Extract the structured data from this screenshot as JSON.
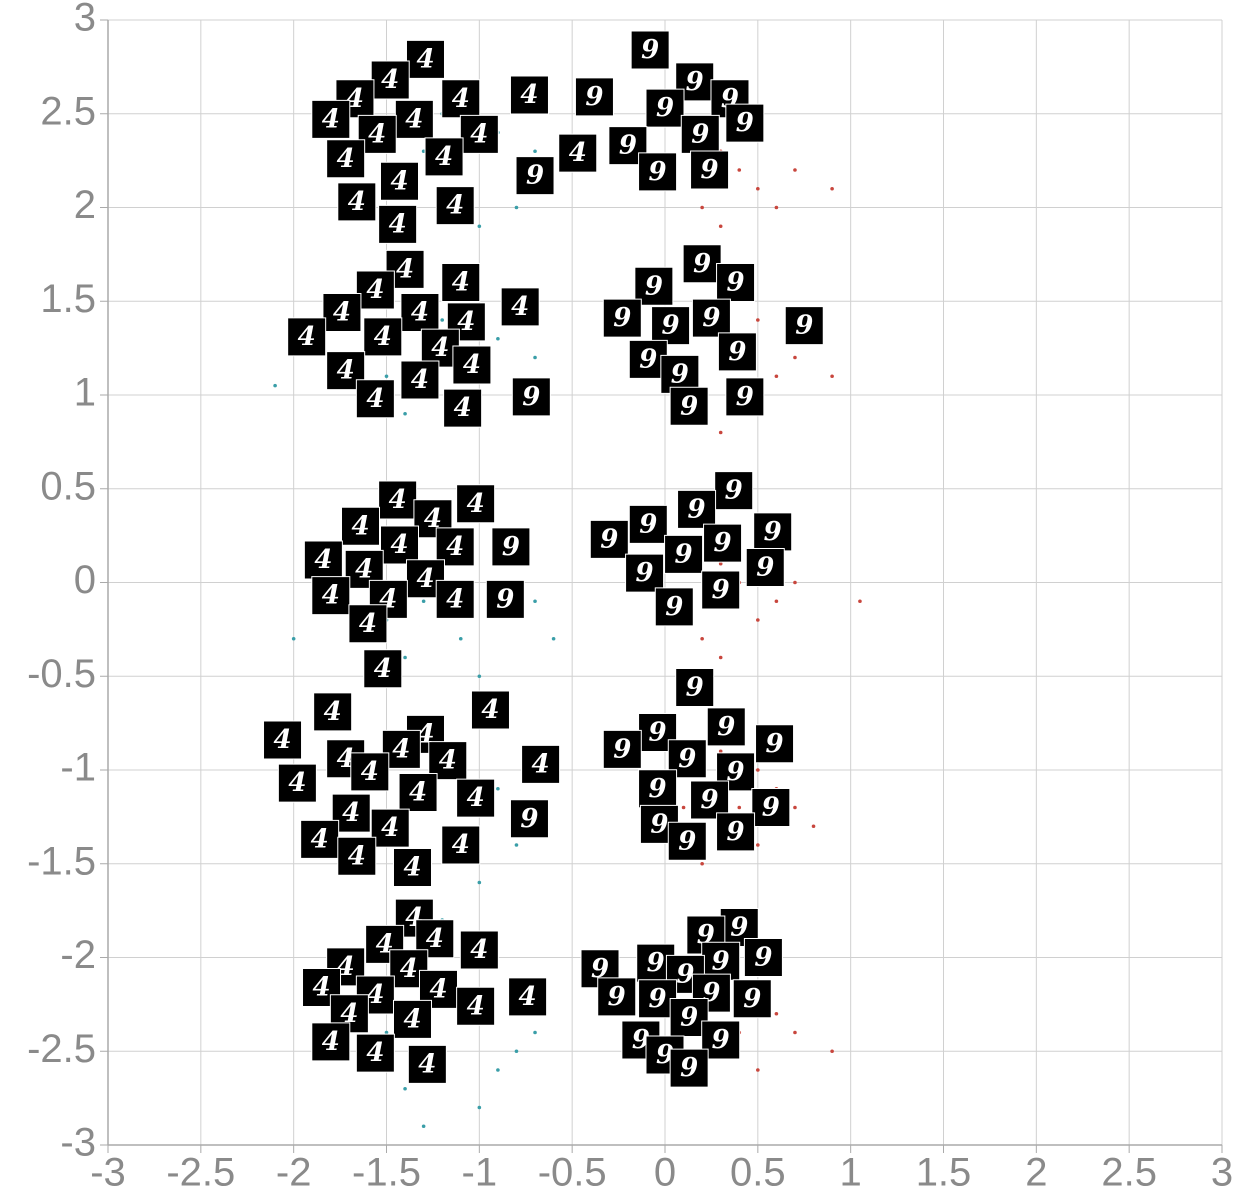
{
  "chart_data": {
    "type": "scatter",
    "xlim": [
      -3,
      3
    ],
    "ylim": [
      -3,
      3
    ],
    "xticks": [
      -3,
      -2.5,
      -2,
      -1.5,
      -1,
      -0.5,
      0,
      0.5,
      1,
      1.5,
      2,
      2.5,
      3
    ],
    "yticks": [
      -3,
      -2.5,
      -2,
      -1.5,
      -1,
      -0.5,
      0,
      0.5,
      1,
      1.5,
      2,
      2.5,
      3
    ],
    "grid": true,
    "series": [
      {
        "color": "#3a9ea8",
        "x": [
          -1.3,
          -1.1,
          -0.9,
          -1.5,
          -1.0,
          -0.7,
          -1.2,
          -1.4,
          -0.8,
          -1.6,
          -1.3,
          -1.1,
          -0.9,
          -1.5,
          -1.0,
          -0.7,
          -1.2,
          -1.4,
          -0.8,
          -2.1,
          -1.3,
          -1.1,
          -0.9,
          -1.5,
          -1.0,
          -0.7,
          -1.2,
          -1.4,
          -0.6,
          -2.0,
          -1.3,
          -1.1,
          -0.9,
          -1.5,
          -1.0,
          -0.7,
          -1.2,
          -1.4,
          -0.8,
          -1.2,
          -1.3,
          -1.1,
          -0.9,
          -1.5,
          -1.0,
          -0.7,
          -1.2,
          -1.4,
          -0.8,
          -1.3
        ],
        "y": [
          2.3,
          2.1,
          2.4,
          2.0,
          1.9,
          2.3,
          2.5,
          2.2,
          2.0,
          2.4,
          1.2,
          1.0,
          1.3,
          1.1,
          0.9,
          1.2,
          1.4,
          0.9,
          1.5,
          1.05,
          -0.1,
          -0.3,
          0.1,
          -0.2,
          -0.5,
          -0.1,
          0.2,
          -0.4,
          -0.3,
          -0.3,
          -1.2,
          -1.4,
          -1.1,
          -1.3,
          -1.6,
          -1.2,
          -1.0,
          -1.5,
          -1.4,
          -1.8,
          -2.5,
          -2.3,
          -2.6,
          -2.4,
          -2.8,
          -2.4,
          -2.2,
          -2.7,
          -2.5,
          -2.9
        ]
      },
      {
        "color": "#c8463d",
        "x": [
          0.4,
          0.5,
          0.3,
          0.6,
          0.2,
          0.5,
          0.7,
          0.3,
          0.9,
          0.1,
          0.4,
          0.5,
          0.3,
          0.6,
          0.2,
          0.5,
          0.7,
          0.3,
          0.9,
          0.1,
          0.4,
          0.5,
          0.3,
          0.6,
          0.2,
          0.5,
          0.7,
          0.3,
          1.05,
          0.1,
          0.4,
          0.5,
          0.3,
          0.6,
          0.2,
          0.5,
          0.7,
          0.3,
          0.8,
          0.1,
          0.4,
          0.5,
          0.3,
          0.6,
          0.2,
          0.5,
          0.7,
          0.3,
          0.9,
          0.1
        ],
        "y": [
          2.2,
          2.1,
          2.3,
          2.0,
          2.0,
          2.4,
          2.2,
          1.9,
          2.1,
          2.3,
          1.2,
          1.0,
          1.3,
          1.1,
          0.9,
          1.4,
          1.2,
          0.8,
          1.1,
          1.3,
          0.0,
          -0.2,
          0.1,
          -0.1,
          -0.3,
          0.2,
          0.0,
          -0.4,
          -0.1,
          0.1,
          -1.2,
          -1.0,
          -1.3,
          -1.1,
          -1.5,
          -1.4,
          -1.2,
          -0.9,
          -1.3,
          -1.2,
          -2.4,
          -2.2,
          -2.5,
          -2.3,
          -2.6,
          -2.6,
          -2.4,
          -2.1,
          -2.5,
          -2.4
        ]
      }
    ],
    "thumbnails": [
      {
        "x": -1.29,
        "y": 2.79,
        "label": "4"
      },
      {
        "x": -1.48,
        "y": 2.68,
        "label": "4"
      },
      {
        "x": -1.1,
        "y": 2.58,
        "label": "4"
      },
      {
        "x": -0.73,
        "y": 2.6,
        "label": "4"
      },
      {
        "x": -1.67,
        "y": 2.58,
        "label": "4"
      },
      {
        "x": -1.8,
        "y": 2.47,
        "label": "4"
      },
      {
        "x": -1.35,
        "y": 2.47,
        "label": "4"
      },
      {
        "x": -1.55,
        "y": 2.39,
        "label": "4"
      },
      {
        "x": -1.0,
        "y": 2.39,
        "label": "4"
      },
      {
        "x": -1.19,
        "y": 2.27,
        "label": "4"
      },
      {
        "x": -1.72,
        "y": 2.26,
        "label": "4"
      },
      {
        "x": -1.43,
        "y": 2.14,
        "label": "4"
      },
      {
        "x": -0.7,
        "y": 2.17,
        "label": "9"
      },
      {
        "x": -1.66,
        "y": 2.03,
        "label": "4"
      },
      {
        "x": -1.13,
        "y": 2.01,
        "label": "4"
      },
      {
        "x": -1.44,
        "y": 1.91,
        "label": "4"
      },
      {
        "x": -0.47,
        "y": 2.29,
        "label": "4"
      },
      {
        "x": -0.08,
        "y": 2.84,
        "label": "9"
      },
      {
        "x": -0.38,
        "y": 2.59,
        "label": "9"
      },
      {
        "x": 0.16,
        "y": 2.67,
        "label": "9"
      },
      {
        "x": 0.0,
        "y": 2.53,
        "label": "9"
      },
      {
        "x": 0.35,
        "y": 2.58,
        "label": "9"
      },
      {
        "x": 0.43,
        "y": 2.45,
        "label": "9"
      },
      {
        "x": 0.19,
        "y": 2.39,
        "label": "9"
      },
      {
        "x": -0.2,
        "y": 2.33,
        "label": "9"
      },
      {
        "x": -0.04,
        "y": 2.19,
        "label": "9"
      },
      {
        "x": 0.24,
        "y": 2.2,
        "label": "9"
      },
      {
        "x": -1.4,
        "y": 1.67,
        "label": "4"
      },
      {
        "x": -1.1,
        "y": 1.6,
        "label": "4"
      },
      {
        "x": -1.56,
        "y": 1.56,
        "label": "4"
      },
      {
        "x": -1.74,
        "y": 1.44,
        "label": "4"
      },
      {
        "x": -1.32,
        "y": 1.44,
        "label": "4"
      },
      {
        "x": -0.78,
        "y": 1.47,
        "label": "4"
      },
      {
        "x": -1.93,
        "y": 1.31,
        "label": "4"
      },
      {
        "x": -1.07,
        "y": 1.39,
        "label": "4"
      },
      {
        "x": -1.52,
        "y": 1.31,
        "label": "4"
      },
      {
        "x": -1.21,
        "y": 1.25,
        "label": "4"
      },
      {
        "x": -1.72,
        "y": 1.13,
        "label": "4"
      },
      {
        "x": -1.04,
        "y": 1.16,
        "label": "4"
      },
      {
        "x": -1.32,
        "y": 1.08,
        "label": "4"
      },
      {
        "x": -1.56,
        "y": 0.98,
        "label": "4"
      },
      {
        "x": -1.09,
        "y": 0.93,
        "label": "4"
      },
      {
        "x": -0.72,
        "y": 0.99,
        "label": "9"
      },
      {
        "x": 0.2,
        "y": 1.7,
        "label": "9"
      },
      {
        "x": 0.38,
        "y": 1.6,
        "label": "9"
      },
      {
        "x": -0.06,
        "y": 1.58,
        "label": "9"
      },
      {
        "x": -0.23,
        "y": 1.41,
        "label": "9"
      },
      {
        "x": 0.25,
        "y": 1.41,
        "label": "9"
      },
      {
        "x": 0.75,
        "y": 1.37,
        "label": "9"
      },
      {
        "x": 0.03,
        "y": 1.37,
        "label": "9"
      },
      {
        "x": 0.39,
        "y": 1.23,
        "label": "9"
      },
      {
        "x": -0.09,
        "y": 1.19,
        "label": "9"
      },
      {
        "x": 0.08,
        "y": 1.11,
        "label": "9"
      },
      {
        "x": 0.43,
        "y": 0.99,
        "label": "9"
      },
      {
        "x": 0.13,
        "y": 0.94,
        "label": "9"
      },
      {
        "x": -1.44,
        "y": 0.44,
        "label": "4"
      },
      {
        "x": -1.02,
        "y": 0.42,
        "label": "4"
      },
      {
        "x": -1.25,
        "y": 0.34,
        "label": "4"
      },
      {
        "x": -1.64,
        "y": 0.3,
        "label": "4"
      },
      {
        "x": -1.43,
        "y": 0.2,
        "label": "4"
      },
      {
        "x": -1.13,
        "y": 0.19,
        "label": "4"
      },
      {
        "x": -0.83,
        "y": 0.19,
        "label": "9"
      },
      {
        "x": -1.84,
        "y": 0.12,
        "label": "4"
      },
      {
        "x": -1.62,
        "y": 0.07,
        "label": "4"
      },
      {
        "x": -1.29,
        "y": 0.02,
        "label": "4"
      },
      {
        "x": -1.8,
        "y": -0.07,
        "label": "4"
      },
      {
        "x": -1.49,
        "y": -0.09,
        "label": "4"
      },
      {
        "x": -1.13,
        "y": -0.09,
        "label": "4"
      },
      {
        "x": -0.86,
        "y": -0.09,
        "label": "9"
      },
      {
        "x": -1.6,
        "y": -0.22,
        "label": "4"
      },
      {
        "x": -1.52,
        "y": -0.46,
        "label": "4"
      },
      {
        "x": 0.37,
        "y": 0.49,
        "label": "9"
      },
      {
        "x": 0.17,
        "y": 0.39,
        "label": "9"
      },
      {
        "x": -0.09,
        "y": 0.31,
        "label": "9"
      },
      {
        "x": -0.3,
        "y": 0.23,
        "label": "9"
      },
      {
        "x": 0.58,
        "y": 0.27,
        "label": "9"
      },
      {
        "x": 0.31,
        "y": 0.21,
        "label": "9"
      },
      {
        "x": 0.1,
        "y": 0.15,
        "label": "9"
      },
      {
        "x": 0.54,
        "y": 0.08,
        "label": "9"
      },
      {
        "x": -0.11,
        "y": 0.05,
        "label": "9"
      },
      {
        "x": 0.3,
        "y": -0.04,
        "label": "9"
      },
      {
        "x": 0.05,
        "y": -0.13,
        "label": "9"
      },
      {
        "x": -1.79,
        "y": -0.69,
        "label": "4"
      },
      {
        "x": -0.94,
        "y": -0.68,
        "label": "4"
      },
      {
        "x": -2.06,
        "y": -0.84,
        "label": "4"
      },
      {
        "x": -1.29,
        "y": -0.81,
        "label": "4"
      },
      {
        "x": -1.72,
        "y": -0.94,
        "label": "4"
      },
      {
        "x": -1.42,
        "y": -0.89,
        "label": "4"
      },
      {
        "x": -1.17,
        "y": -0.95,
        "label": "4"
      },
      {
        "x": -0.67,
        "y": -0.97,
        "label": "4"
      },
      {
        "x": -1.59,
        "y": -1.01,
        "label": "4"
      },
      {
        "x": -1.98,
        "y": -1.07,
        "label": "4"
      },
      {
        "x": -1.33,
        "y": -1.12,
        "label": "4"
      },
      {
        "x": -1.02,
        "y": -1.15,
        "label": "4"
      },
      {
        "x": -1.69,
        "y": -1.23,
        "label": "4"
      },
      {
        "x": -0.73,
        "y": -1.26,
        "label": "9"
      },
      {
        "x": -1.48,
        "y": -1.31,
        "label": "4"
      },
      {
        "x": -1.86,
        "y": -1.37,
        "label": "4"
      },
      {
        "x": -1.1,
        "y": -1.4,
        "label": "4"
      },
      {
        "x": -1.66,
        "y": -1.46,
        "label": "4"
      },
      {
        "x": -1.36,
        "y": -1.52,
        "label": "4"
      },
      {
        "x": 0.16,
        "y": -0.56,
        "label": "9"
      },
      {
        "x": -0.04,
        "y": -0.8,
        "label": "9"
      },
      {
        "x": 0.33,
        "y": -0.77,
        "label": "9"
      },
      {
        "x": -0.23,
        "y": -0.89,
        "label": "9"
      },
      {
        "x": 0.59,
        "y": -0.86,
        "label": "9"
      },
      {
        "x": 0.12,
        "y": -0.94,
        "label": "9"
      },
      {
        "x": 0.38,
        "y": -1.01,
        "label": "9"
      },
      {
        "x": -0.04,
        "y": -1.1,
        "label": "9"
      },
      {
        "x": 0.24,
        "y": -1.16,
        "label": "9"
      },
      {
        "x": 0.57,
        "y": -1.2,
        "label": "9"
      },
      {
        "x": -0.03,
        "y": -1.29,
        "label": "9"
      },
      {
        "x": 0.38,
        "y": -1.33,
        "label": "9"
      },
      {
        "x": 0.12,
        "y": -1.38,
        "label": "9"
      },
      {
        "x": -1.35,
        "y": -1.79,
        "label": "4"
      },
      {
        "x": -1.51,
        "y": -1.93,
        "label": "4"
      },
      {
        "x": -1.24,
        "y": -1.9,
        "label": "4"
      },
      {
        "x": -1.0,
        "y": -1.96,
        "label": "4"
      },
      {
        "x": -1.72,
        "y": -2.05,
        "label": "4"
      },
      {
        "x": -1.38,
        "y": -2.06,
        "label": "4"
      },
      {
        "x": -1.85,
        "y": -2.16,
        "label": "4"
      },
      {
        "x": -1.56,
        "y": -2.2,
        "label": "4"
      },
      {
        "x": -1.22,
        "y": -2.17,
        "label": "4"
      },
      {
        "x": -0.74,
        "y": -2.21,
        "label": "4"
      },
      {
        "x": -1.02,
        "y": -2.26,
        "label": "4"
      },
      {
        "x": -1.7,
        "y": -2.3,
        "label": "4"
      },
      {
        "x": -1.36,
        "y": -2.33,
        "label": "4"
      },
      {
        "x": -1.8,
        "y": -2.45,
        "label": "4"
      },
      {
        "x": -1.56,
        "y": -2.51,
        "label": "4"
      },
      {
        "x": -1.28,
        "y": -2.57,
        "label": "4"
      },
      {
        "x": 0.4,
        "y": -1.84,
        "label": "9"
      },
      {
        "x": 0.22,
        "y": -1.88,
        "label": "9"
      },
      {
        "x": 0.53,
        "y": -2.0,
        "label": "9"
      },
      {
        "x": 0.3,
        "y": -2.02,
        "label": "9"
      },
      {
        "x": -0.05,
        "y": -2.03,
        "label": "9"
      },
      {
        "x": -0.35,
        "y": -2.06,
        "label": "9"
      },
      {
        "x": 0.11,
        "y": -2.09,
        "label": "9"
      },
      {
        "x": 0.25,
        "y": -2.19,
        "label": "9"
      },
      {
        "x": 0.47,
        "y": -2.22,
        "label": "9"
      },
      {
        "x": -0.26,
        "y": -2.21,
        "label": "9"
      },
      {
        "x": -0.04,
        "y": -2.22,
        "label": "9"
      },
      {
        "x": 0.13,
        "y": -2.32,
        "label": "9"
      },
      {
        "x": -0.13,
        "y": -2.44,
        "label": "9"
      },
      {
        "x": 0.3,
        "y": -2.44,
        "label": "9"
      },
      {
        "x": 0.0,
        "y": -2.52,
        "label": "9"
      },
      {
        "x": 0.13,
        "y": -2.59,
        "label": "9"
      }
    ]
  }
}
